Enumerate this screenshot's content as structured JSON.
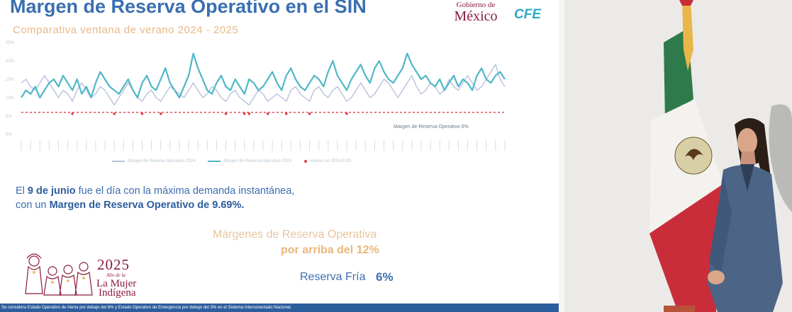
{
  "slide": {
    "title": "Margen de Reserva Operativo en el SIN",
    "subtitle": "Comparativa ventana de verano 2024 - 2025",
    "logos": {
      "gob_small": "Gobierno de",
      "gob_big": "México",
      "cfe": "CFE"
    },
    "note_line1_pre": "El ",
    "note_line1_bold": "9 de junio",
    "note_line1_post": " fue el día con la máxima demanda instantánea,",
    "note_line2_pre": "con un ",
    "note_line2_bold": "Margen de Reserva Operativo de 9.69%.",
    "margins_line1": "Márgenes de Reserva Operativa",
    "margins_line2": "por arriba del 12%",
    "reserva_label": "Reserva Fría",
    "reserva_value": "6%",
    "mujer_year": "2025",
    "mujer_ano": "Año de la",
    "mujer_line1": "La Mujer",
    "mujer_line2": "Indígena",
    "footer": "Se considera Estado Operativo de Alerta por debajo del 6% y Estado Operativo de Emergencia por debajo del 3% en el Sistema Interconectado Nacional."
  },
  "legend": [
    {
      "label": "Margen de Reserva Operativo 2024",
      "color": "#b9c2dc"
    },
    {
      "label": "Margen de Reserva Operativo 2025",
      "color": "#4fb7c7"
    },
    {
      "label": "Valores en 2024-2025",
      "color": "#d9434a"
    }
  ],
  "chart_data": {
    "type": "line",
    "yticks": [
      "25%",
      "20%",
      "15%",
      "10%",
      "5%",
      "0%"
    ],
    "ylim": [
      0,
      25
    ],
    "threshold": {
      "value": 6,
      "label": "Margen de Reserva Operativo 6%",
      "color": "#d9434a"
    },
    "series": [
      {
        "name": "Margen de Reserva Operativo 2025",
        "color": "#4fb7c7",
        "values": [
          10,
          12,
          11,
          13,
          10,
          12,
          14,
          15,
          13,
          16,
          14,
          12,
          15,
          11,
          13,
          10,
          14,
          17,
          15,
          13,
          12,
          11,
          13,
          15,
          12,
          10,
          14,
          16,
          13,
          12,
          15,
          18,
          14,
          12,
          10,
          13,
          16,
          22,
          18,
          15,
          12,
          11,
          14,
          16,
          13,
          12,
          15,
          13,
          11,
          15,
          14,
          12,
          13,
          15,
          17,
          14,
          12,
          16,
          18,
          15,
          13,
          12,
          14,
          16,
          15,
          13,
          17,
          20,
          16,
          14,
          12,
          15,
          17,
          19,
          16,
          14,
          18,
          20,
          17,
          15,
          14,
          16,
          18,
          22,
          19,
          17,
          15,
          16,
          14,
          13,
          15,
          12,
          14,
          16,
          13,
          15,
          14,
          12,
          16,
          18,
          15,
          14,
          16,
          17,
          15
        ]
      },
      {
        "name": "Margen de Reserva Operativo 2024",
        "color": "#b9c2dc",
        "values": [
          14,
          15,
          13,
          12,
          14,
          16,
          14,
          12,
          10,
          12,
          11,
          9,
          12,
          14,
          12,
          10,
          11,
          13,
          12,
          10,
          8,
          10,
          12,
          14,
          12,
          10,
          9,
          11,
          12,
          10,
          9,
          11,
          13,
          12,
          11,
          10,
          12,
          14,
          12,
          10,
          11,
          13,
          12,
          10,
          9,
          11,
          12,
          10,
          9,
          8,
          10,
          12,
          11,
          9,
          10,
          11,
          10,
          9,
          12,
          13,
          11,
          10,
          9,
          12,
          13,
          11,
          10,
          12,
          13,
          11,
          9,
          10,
          12,
          14,
          12,
          10,
          11,
          13,
          15,
          14,
          12,
          10,
          12,
          14,
          16,
          13,
          11,
          12,
          14,
          13,
          11,
          12,
          15,
          13,
          12,
          14,
          16,
          14,
          12,
          13,
          15,
          17,
          19,
          15,
          13
        ]
      }
    ]
  }
}
